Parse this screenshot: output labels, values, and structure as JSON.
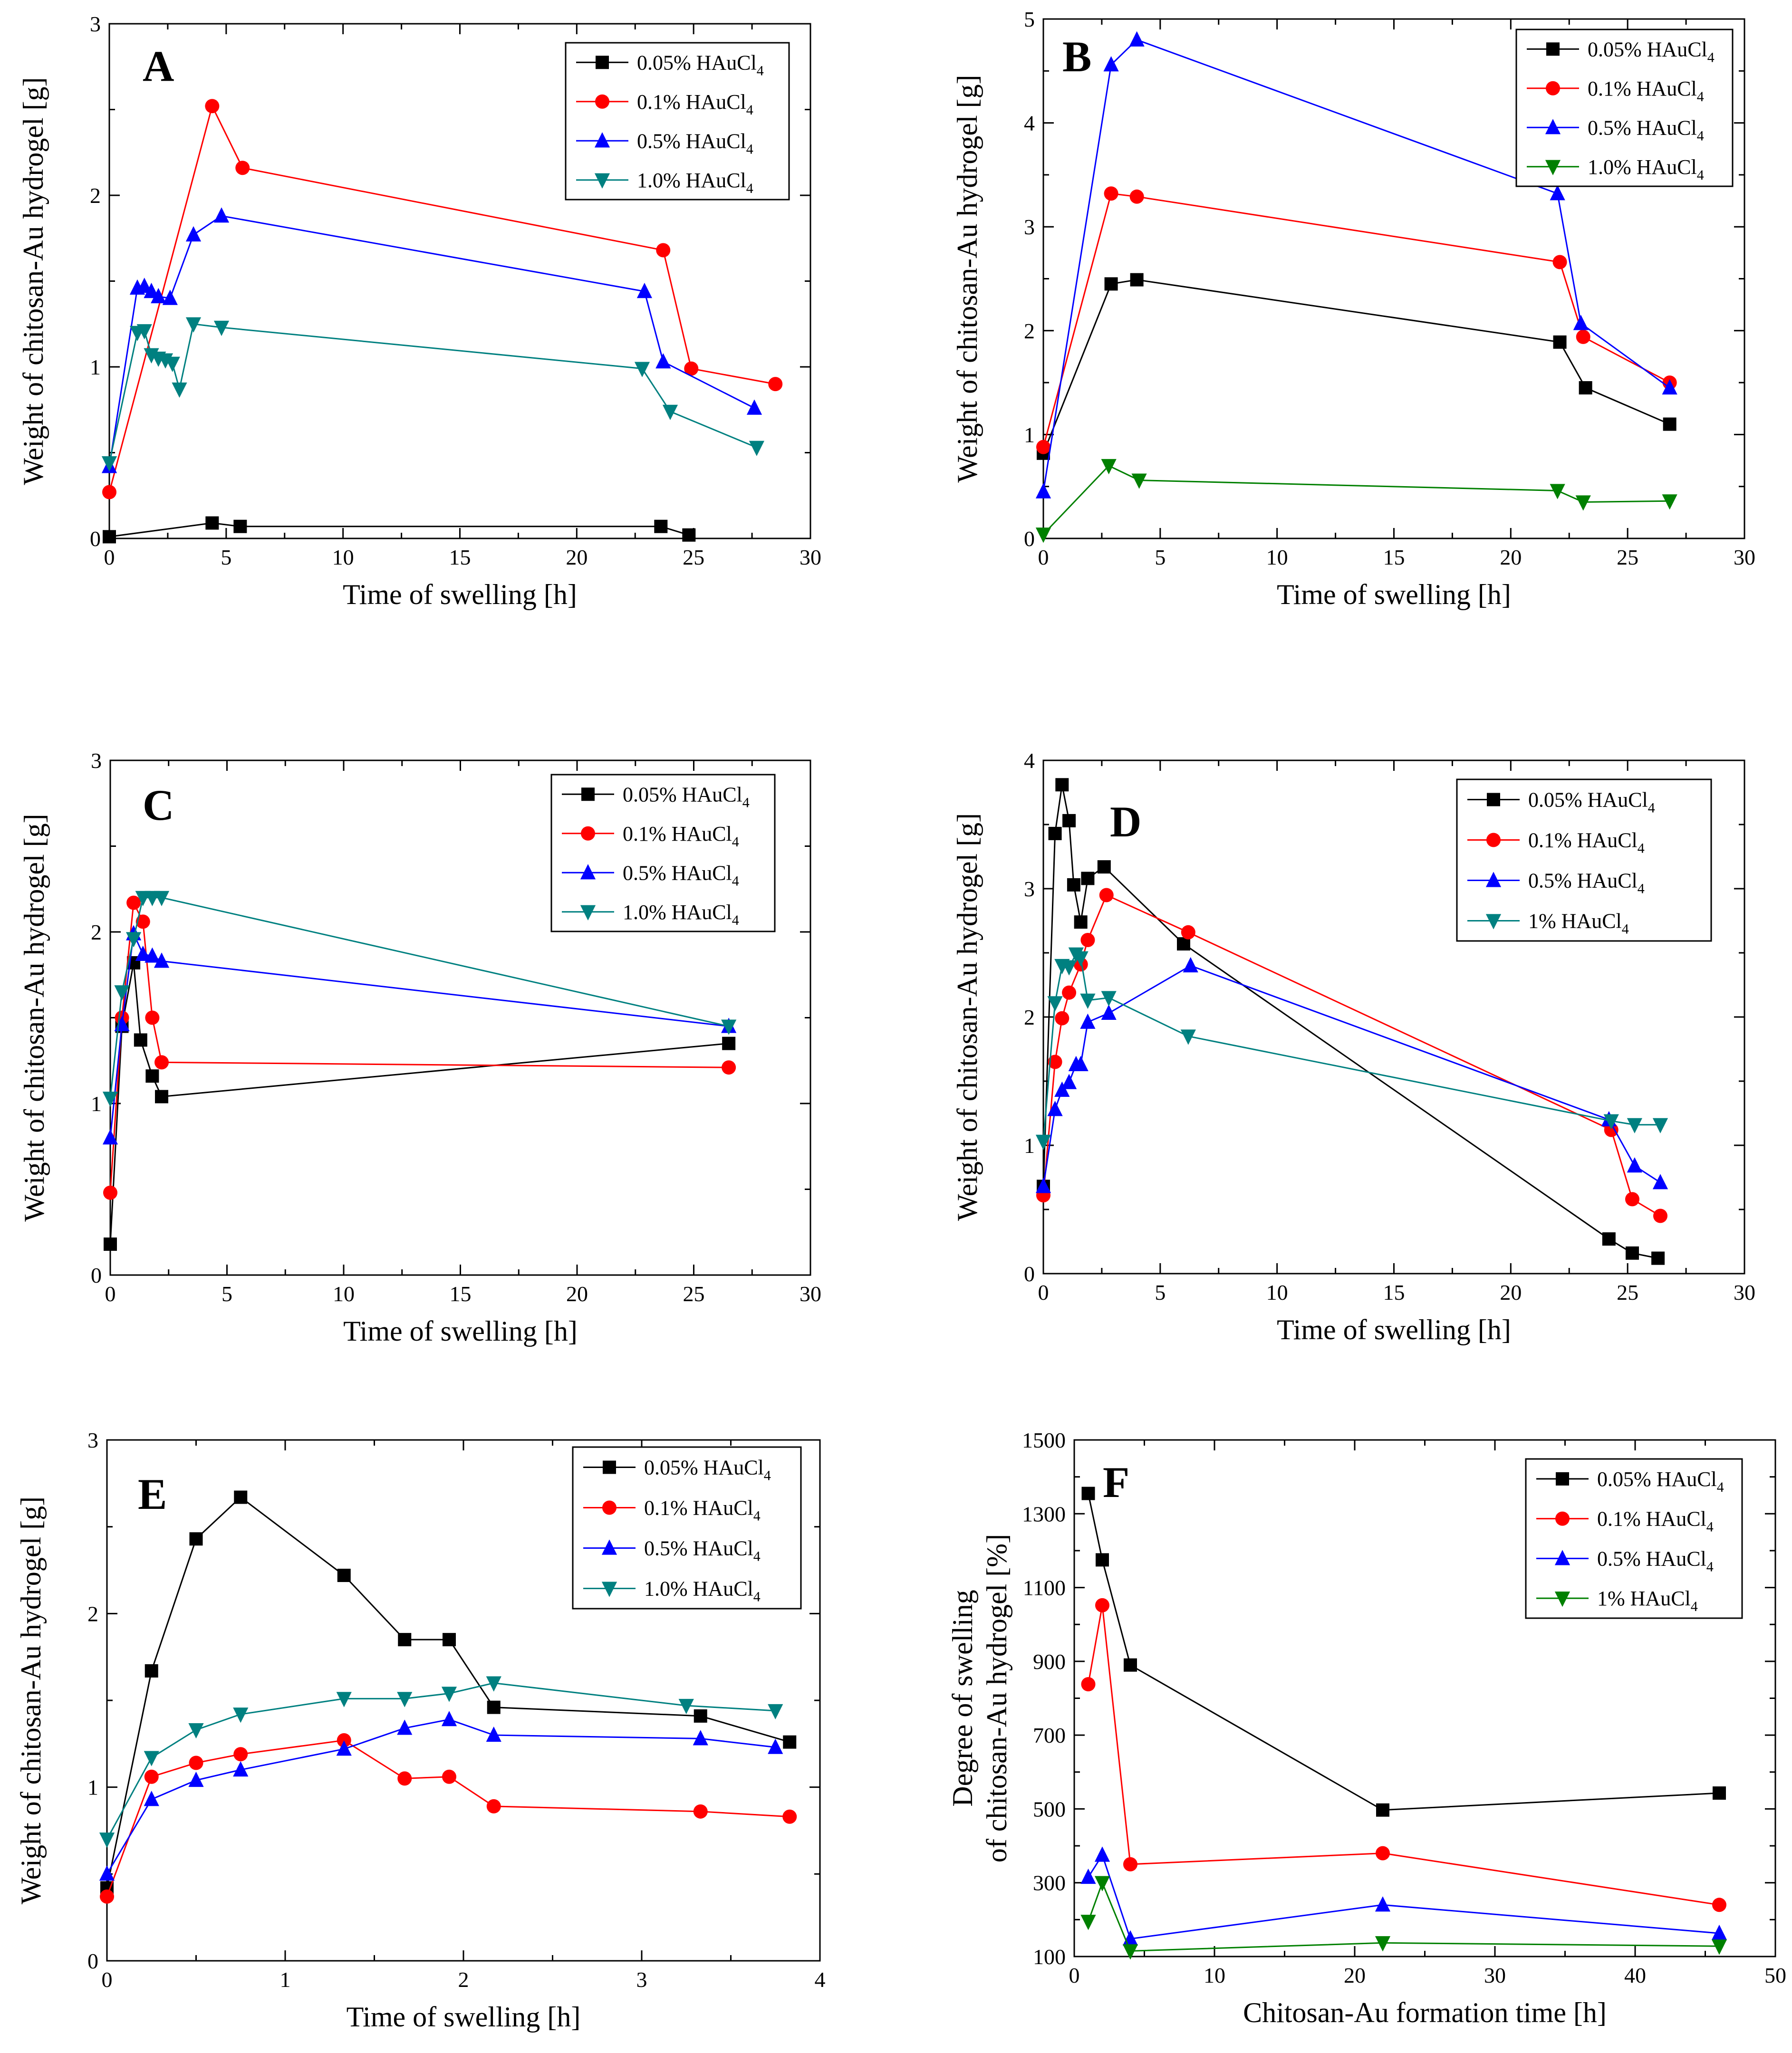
{
  "chart_data": [
    {
      "type": "line",
      "panel_label": "A",
      "xlabel": "Time of swelling [h]",
      "ylabel": "Weight of chitosan-Au hydrogel [g]",
      "xlim": [
        0,
        30
      ],
      "ylim": [
        0,
        3
      ],
      "xticks": [
        "0",
        "5",
        "10",
        "15",
        "20",
        "25",
        "30"
      ],
      "yticks": [
        "0",
        "1",
        "2",
        "3"
      ],
      "legend_position": "top-right",
      "series": [
        {
          "name": "0.05% HAuCl",
          "sub": "4",
          "marker": "square",
          "color": "#000000",
          "x": [
            0,
            4.4,
            5.6,
            23.6,
            24.8
          ],
          "y": [
            0.01,
            0.09,
            0.07,
            0.07,
            0.02
          ]
        },
        {
          "name": "0.1% HAuCl",
          "sub": "4",
          "marker": "circle",
          "color": "#ff0000",
          "x": [
            0,
            4.4,
            5.7,
            23.7,
            24.9,
            28.5
          ],
          "y": [
            0.27,
            2.52,
            2.16,
            1.68,
            0.99,
            0.9
          ]
        },
        {
          "name": "0.5% HAuCl",
          "sub": "4",
          "marker": "triangle-up",
          "color": "#0000ff",
          "x": [
            0,
            1.2,
            1.5,
            1.8,
            2.1,
            2.6,
            3.6,
            4.8,
            22.9,
            23.7,
            27.6
          ],
          "y": [
            0.42,
            1.46,
            1.47,
            1.44,
            1.41,
            1.4,
            1.77,
            1.88,
            1.44,
            1.03,
            0.76
          ]
        },
        {
          "name": "1.0% HAuCl",
          "sub": "4",
          "marker": "triangle-down",
          "color": "#008080",
          "x": [
            0,
            1.2,
            1.5,
            1.8,
            2.1,
            2.4,
            2.7,
            3.0,
            3.6,
            4.8,
            22.8,
            24.0,
            27.7
          ],
          "y": [
            0.44,
            1.2,
            1.21,
            1.07,
            1.05,
            1.04,
            1.02,
            0.87,
            1.25,
            1.23,
            0.99,
            0.74,
            0.53
          ]
        }
      ]
    },
    {
      "type": "line",
      "panel_label": "B",
      "xlabel": "Time of swelling [h]",
      "ylabel": "Weight of chitosan-Au hydrogel [g]",
      "xlim": [
        0,
        30
      ],
      "ylim": [
        0,
        5
      ],
      "xticks": [
        "0",
        "5",
        "10",
        "15",
        "20",
        "25",
        "30"
      ],
      "yticks": [
        "0",
        "1",
        "2",
        "3",
        "4",
        "5"
      ],
      "legend_position": "top-right",
      "series": [
        {
          "name": "0.05% HAuCl",
          "sub": "4",
          "marker": "square",
          "color": "#000000",
          "x": [
            0,
            2.9,
            4.0,
            22.1,
            23.2,
            26.8
          ],
          "y": [
            0.82,
            2.45,
            2.49,
            1.89,
            1.45,
            1.1
          ]
        },
        {
          "name": "0.1% HAuCl",
          "sub": "4",
          "marker": "circle",
          "color": "#ff0000",
          "x": [
            0,
            2.9,
            4.0,
            22.1,
            23.1,
            26.8
          ],
          "y": [
            0.88,
            3.32,
            3.29,
            2.66,
            1.94,
            1.5
          ]
        },
        {
          "name": "0.5% HAuCl",
          "sub": "4",
          "marker": "triangle-up",
          "color": "#0000ff",
          "x": [
            0,
            2.9,
            4.0,
            22.0,
            23.0,
            26.8
          ],
          "y": [
            0.45,
            4.56,
            4.8,
            3.32,
            2.07,
            1.45
          ]
        },
        {
          "name": "1.0% HAuCl",
          "sub": "4",
          "marker": "triangle-down",
          "color": "#008000",
          "x": [
            0,
            2.8,
            4.1,
            22.0,
            23.1,
            26.8
          ],
          "y": [
            0.04,
            0.7,
            0.56,
            0.46,
            0.35,
            0.36
          ]
        }
      ]
    },
    {
      "type": "line",
      "panel_label": "C",
      "xlabel": "Time of swelling [h]",
      "ylabel": "Weight of chitosan-Au hydrogel [g]",
      "xlim": [
        0,
        30
      ],
      "ylim": [
        0,
        3
      ],
      "xticks": [
        "0",
        "5",
        "10",
        "15",
        "20",
        "25",
        "30"
      ],
      "yticks": [
        "0",
        "1",
        "2",
        "3"
      ],
      "legend_position": "top-right",
      "series": [
        {
          "name": "0.05% HAuCl",
          "sub": "4",
          "marker": "square",
          "color": "#000000",
          "x": [
            0,
            0.5,
            1.0,
            1.3,
            1.8,
            2.2,
            26.5
          ],
          "y": [
            0.18,
            1.45,
            1.82,
            1.37,
            1.16,
            1.04,
            1.35
          ]
        },
        {
          "name": "0.1% HAuCl",
          "sub": "4",
          "marker": "circle",
          "color": "#ff0000",
          "x": [
            0,
            0.5,
            1.0,
            1.4,
            1.8,
            2.2,
            26.5
          ],
          "y": [
            0.48,
            1.5,
            2.17,
            2.06,
            1.5,
            1.24,
            1.21
          ]
        },
        {
          "name": "0.5% HAuCl",
          "sub": "4",
          "marker": "triangle-up",
          "color": "#0000ff",
          "x": [
            0,
            0.5,
            1.0,
            1.4,
            1.8,
            2.2,
            26.5
          ],
          "y": [
            0.8,
            1.46,
            1.99,
            1.87,
            1.86,
            1.83,
            1.45
          ]
        },
        {
          "name": "1.0% HAuCl",
          "sub": "4",
          "marker": "triangle-down",
          "color": "#008080",
          "x": [
            0,
            0.5,
            1.0,
            1.4,
            1.8,
            2.2,
            26.5
          ],
          "y": [
            1.03,
            1.65,
            1.96,
            2.2,
            2.2,
            2.2,
            1.45
          ]
        }
      ]
    },
    {
      "type": "line",
      "panel_label": "D",
      "xlabel": "Time of swelling [h]",
      "ylabel": "Weight of chitosan-Au hydrogel [g]",
      "xlim": [
        0,
        30
      ],
      "ylim": [
        0,
        4
      ],
      "xticks": [
        "0",
        "5",
        "10",
        "15",
        "20",
        "25",
        "30"
      ],
      "yticks": [
        "0",
        "1",
        "2",
        "3",
        "4"
      ],
      "legend_position": "top-right",
      "series": [
        {
          "name": "0.05% HAuCl",
          "sub": "4",
          "marker": "square",
          "color": "#000000",
          "x": [
            0,
            0.5,
            0.8,
            1.1,
            1.3,
            1.6,
            1.9,
            2.6,
            6.0,
            24.2,
            25.2,
            26.3
          ],
          "y": [
            0.68,
            3.43,
            3.81,
            3.53,
            3.03,
            2.74,
            3.08,
            3.17,
            2.57,
            0.27,
            0.16,
            0.12
          ]
        },
        {
          "name": "0.1% HAuCl",
          "sub": "4",
          "marker": "circle",
          "color": "#ff0000",
          "x": [
            0,
            0.5,
            0.8,
            1.1,
            1.6,
            1.9,
            2.7,
            6.2,
            24.3,
            25.2,
            26.4
          ],
          "y": [
            0.61,
            1.65,
            1.99,
            2.19,
            2.41,
            2.6,
            2.95,
            2.66,
            1.12,
            0.58,
            0.45
          ]
        },
        {
          "name": "0.5% HAuCl",
          "sub": "4",
          "marker": "triangle-up",
          "color": "#0000ff",
          "x": [
            0,
            0.5,
            0.8,
            1.1,
            1.4,
            1.6,
            1.9,
            2.8,
            6.3,
            24.2,
            25.3,
            26.4
          ],
          "y": [
            0.68,
            1.28,
            1.43,
            1.49,
            1.63,
            1.63,
            1.96,
            2.03,
            2.4,
            1.2,
            0.84,
            0.71
          ]
        },
        {
          "name": "1% HAuCl",
          "sub": "4",
          "marker": "triangle-down",
          "color": "#008080",
          "x": [
            0,
            0.5,
            0.8,
            1.1,
            1.4,
            1.6,
            1.9,
            2.8,
            6.2,
            24.3,
            25.3,
            26.4
          ],
          "y": [
            1.03,
            2.11,
            2.4,
            2.39,
            2.49,
            2.46,
            2.13,
            2.15,
            1.85,
            1.19,
            1.16,
            1.16
          ]
        }
      ]
    },
    {
      "type": "line",
      "panel_label": "E",
      "xlabel": "Time of swelling [h]",
      "ylabel": "Weight of chitosan-Au hydrogel [g]",
      "xlim": [
        0,
        4
      ],
      "ylim": [
        0,
        3
      ],
      "xticks": [
        "0",
        "1",
        "2",
        "3",
        "4"
      ],
      "yticks": [
        "0",
        "1",
        "2",
        "3"
      ],
      "legend_position": "top-right",
      "series": [
        {
          "name": "0.05% HAuCl",
          "sub": "4",
          "marker": "square",
          "color": "#000000",
          "x": [
            0,
            0.25,
            0.5,
            0.75,
            1.33,
            1.67,
            1.92,
            2.17,
            3.33,
            3.83
          ],
          "y": [
            0.42,
            1.67,
            2.43,
            2.67,
            2.22,
            1.85,
            1.85,
            1.46,
            1.41,
            1.26
          ]
        },
        {
          "name": "0.1% HAuCl",
          "sub": "4",
          "marker": "circle",
          "color": "#ff0000",
          "x": [
            0,
            0.25,
            0.5,
            0.75,
            1.33,
            1.67,
            1.92,
            2.17,
            3.33,
            3.83
          ],
          "y": [
            0.37,
            1.06,
            1.14,
            1.19,
            1.27,
            1.05,
            1.06,
            0.89,
            0.86,
            0.83
          ]
        },
        {
          "name": "0.5% HAuCl",
          "sub": "4",
          "marker": "triangle-up",
          "color": "#0000ff",
          "x": [
            0,
            0.25,
            0.5,
            0.75,
            1.33,
            1.67,
            1.92,
            2.17,
            3.33,
            3.75
          ],
          "y": [
            0.5,
            0.93,
            1.04,
            1.1,
            1.22,
            1.34,
            1.39,
            1.3,
            1.28,
            1.23
          ]
        },
        {
          "name": "1.0% HAuCl",
          "sub": "4",
          "marker": "triangle-down",
          "color": "#008080",
          "x": [
            0,
            0.25,
            0.5,
            0.75,
            1.33,
            1.67,
            1.92,
            2.17,
            3.25,
            3.75
          ],
          "y": [
            0.7,
            1.17,
            1.33,
            1.42,
            1.51,
            1.51,
            1.54,
            1.6,
            1.47,
            1.44
          ]
        }
      ]
    },
    {
      "type": "line",
      "panel_label": "F",
      "xlabel": "Chitosan-Au formation time [h]",
      "ylabel_lines": [
        "Degree of swelling",
        "of chitosan-Au hydrogel [%]"
      ],
      "xlim": [
        0,
        50
      ],
      "ylim": [
        100,
        1500
      ],
      "xticks": [
        "0",
        "10",
        "20",
        "30",
        "40",
        "50"
      ],
      "yticks": [
        "100",
        "300",
        "500",
        "700",
        "900",
        "1100",
        "1300",
        "1500"
      ],
      "legend_position": "top-right",
      "series": [
        {
          "name": "0.05% HAuCl",
          "sub": "4",
          "marker": "square",
          "color": "#000000",
          "x": [
            1,
            2,
            4,
            22,
            46
          ],
          "y": [
            1355,
            1175,
            890,
            497,
            543
          ]
        },
        {
          "name": "0.1% HAuCl",
          "sub": "4",
          "marker": "circle",
          "color": "#ff0000",
          "x": [
            1,
            2,
            4,
            22,
            46
          ],
          "y": [
            838,
            1052,
            350,
            380,
            240
          ]
        },
        {
          "name": "0.5% HAuCl",
          "sub": "4",
          "marker": "triangle-up",
          "color": "#0000ff",
          "x": [
            1,
            2,
            4,
            22,
            46
          ],
          "y": [
            315,
            375,
            148,
            240,
            163
          ]
        },
        {
          "name": "1% HAuCl",
          "sub": "4",
          "marker": "triangle-down",
          "color": "#008000",
          "x": [
            1,
            2,
            4,
            22,
            46
          ],
          "y": [
            195,
            300,
            115,
            137,
            128
          ]
        }
      ]
    }
  ]
}
